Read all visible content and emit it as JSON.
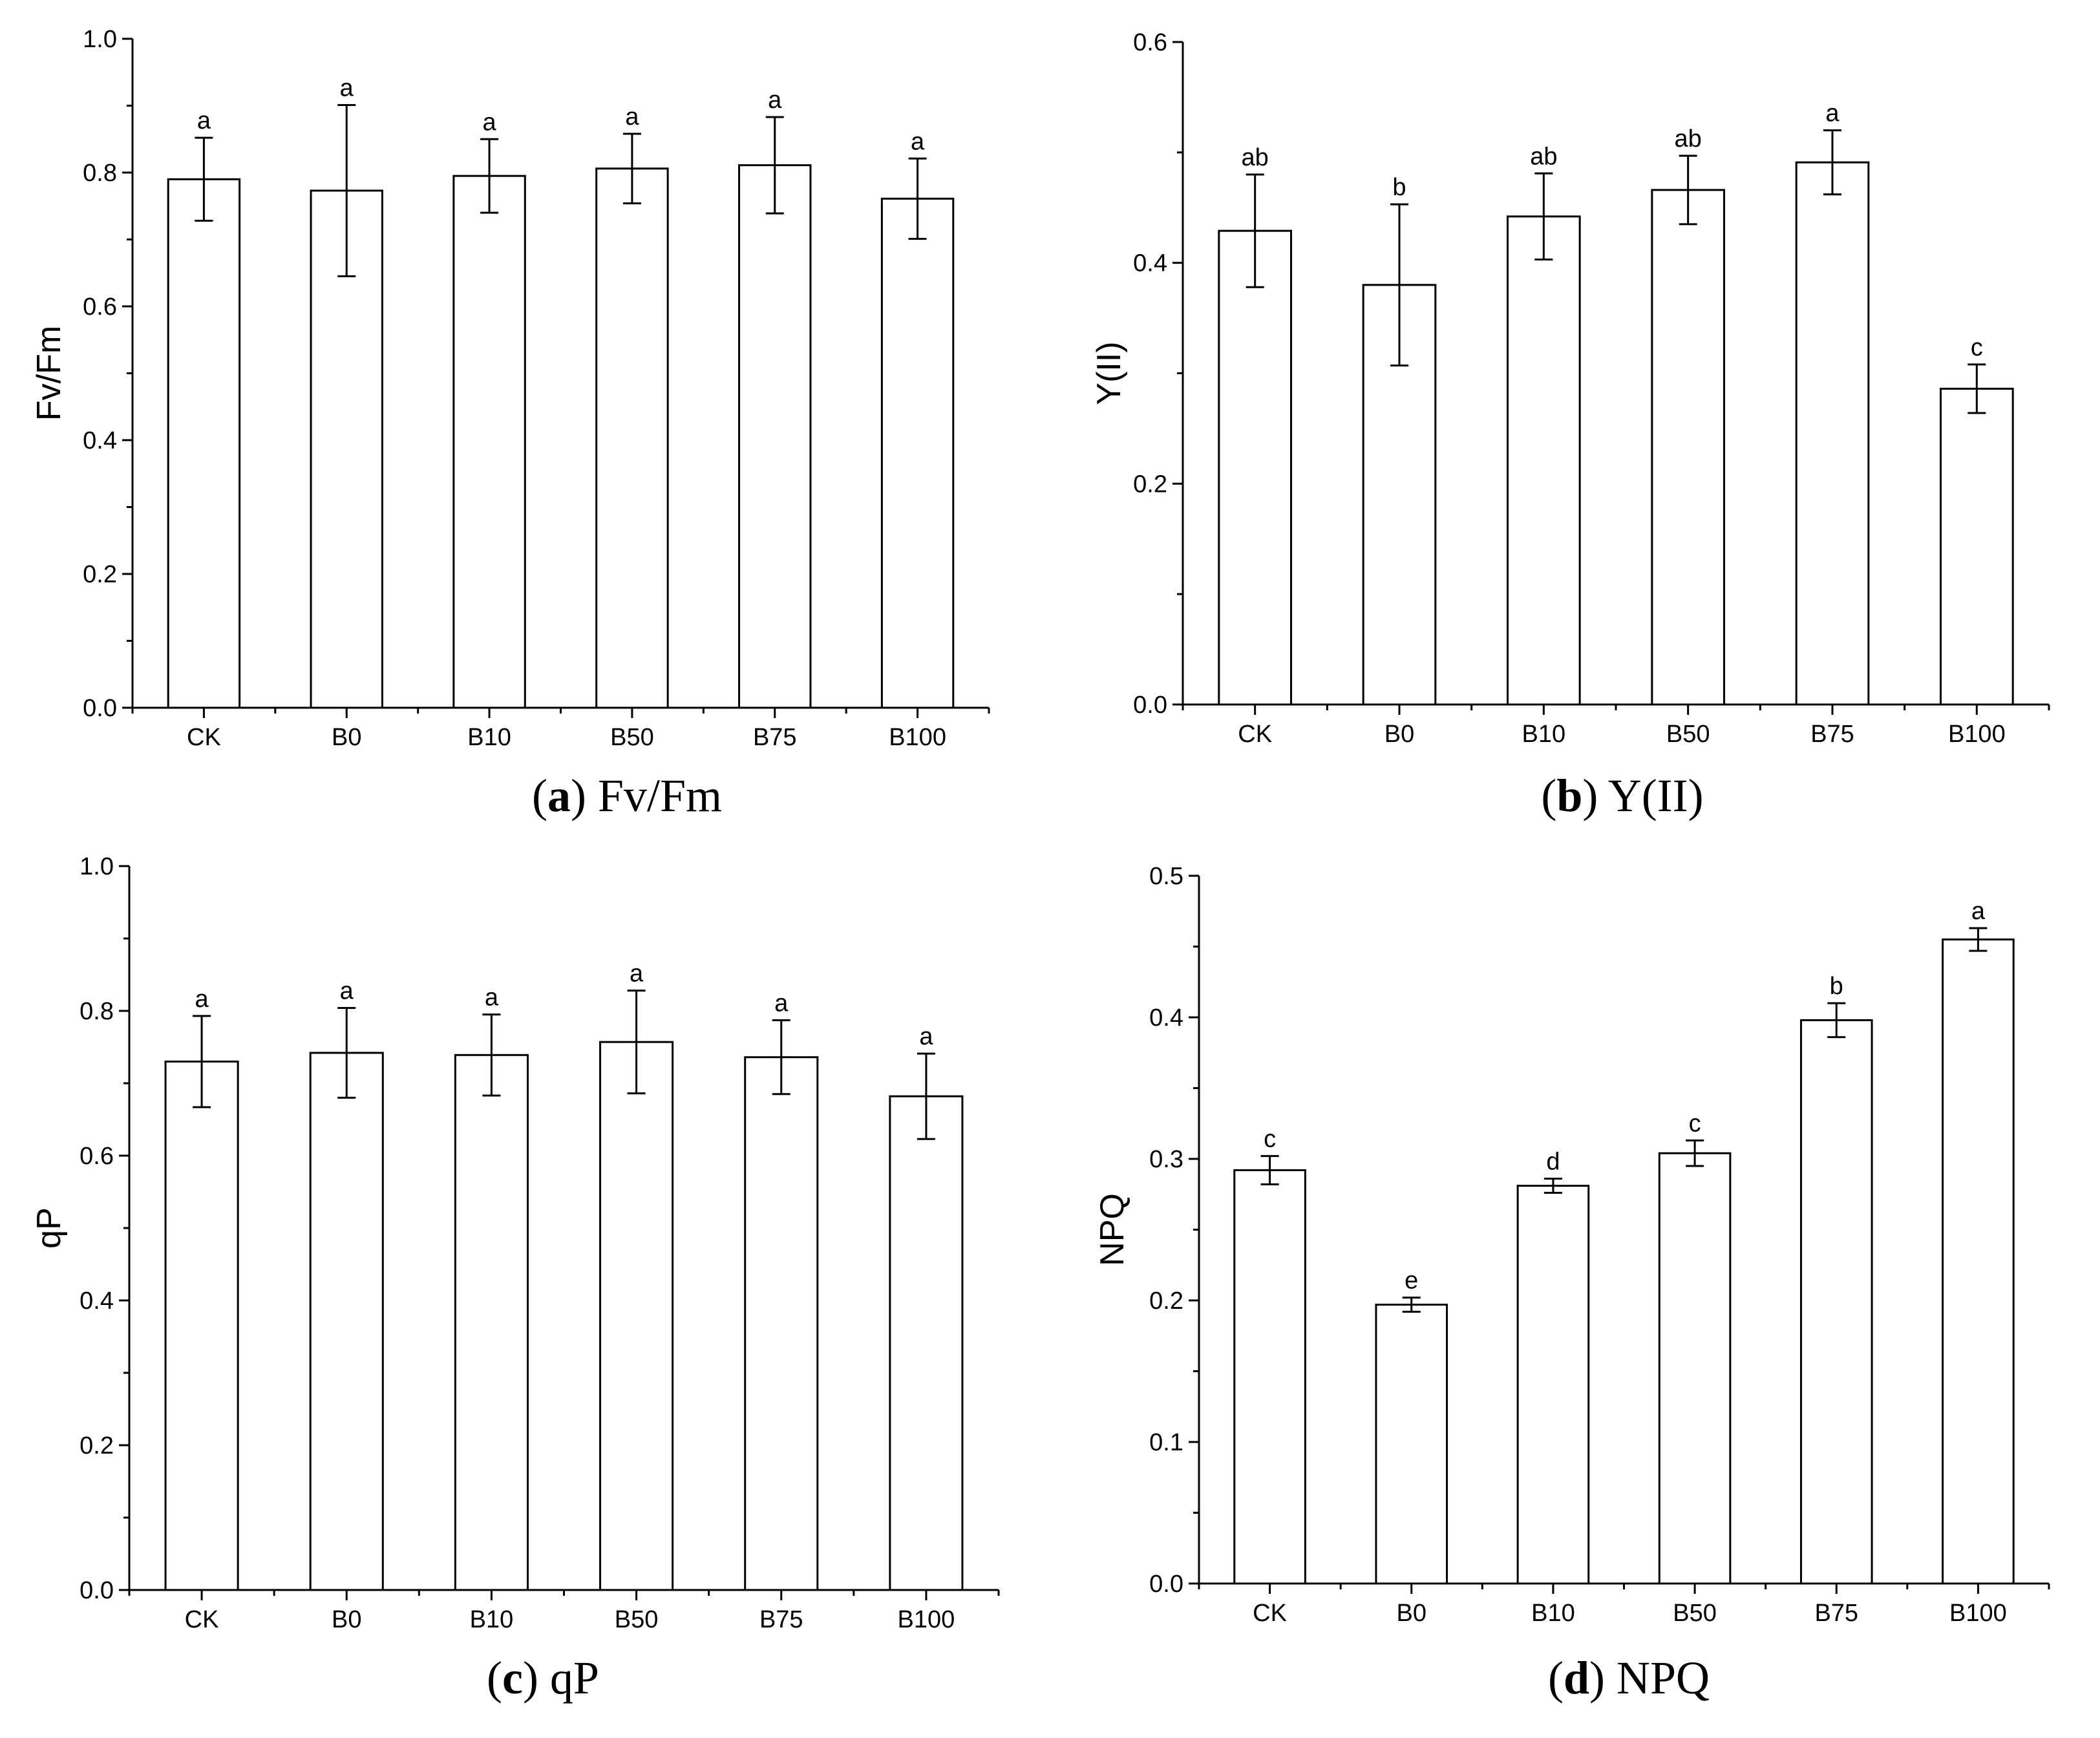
{
  "chart_data": [
    {
      "type": "bar",
      "panel_letter": "a",
      "caption": "Fv/Fm",
      "ylabel": "Fv/Fm",
      "categories": [
        "CK",
        "B0",
        "B10",
        "B50",
        "B75",
        "B100"
      ],
      "values": [
        0.79,
        0.773,
        0.795,
        0.806,
        0.811,
        0.761
      ],
      "errors": [
        0.062,
        0.128,
        0.055,
        0.052,
        0.072,
        0.06
      ],
      "significance": [
        "a",
        "a",
        "a",
        "a",
        "a",
        "a"
      ],
      "ylim": [
        0,
        1.0
      ],
      "yticks": [
        "0.0",
        "0.2",
        "0.4",
        "0.6",
        "0.8",
        "1.0"
      ]
    },
    {
      "type": "bar",
      "panel_letter": "b",
      "caption": "Y(II)",
      "ylabel": "Y(II)",
      "categories": [
        "CK",
        "B0",
        "B10",
        "B50",
        "B75",
        "B100"
      ],
      "values": [
        0.429,
        0.38,
        0.442,
        0.466,
        0.491,
        0.286
      ],
      "errors": [
        0.051,
        0.073,
        0.039,
        0.031,
        0.029,
        0.022
      ],
      "significance": [
        "ab",
        "b",
        "ab",
        "ab",
        "a",
        "c"
      ],
      "ylim": [
        0,
        0.6
      ],
      "yticks": [
        "0.0",
        "0.2",
        "0.4",
        "0.6"
      ]
    },
    {
      "type": "bar",
      "panel_letter": "c",
      "caption": "qP",
      "ylabel": "qP",
      "categories": [
        "CK",
        "B0",
        "B10",
        "B50",
        "B75",
        "B100"
      ],
      "values": [
        0.73,
        0.742,
        0.739,
        0.757,
        0.736,
        0.682
      ],
      "errors": [
        0.063,
        0.062,
        0.056,
        0.071,
        0.051,
        0.059
      ],
      "significance": [
        "a",
        "a",
        "a",
        "a",
        "a",
        "a"
      ],
      "ylim": [
        0,
        1.0
      ],
      "yticks": [
        "0.0",
        "0.2",
        "0.4",
        "0.6",
        "0.8",
        "1.0"
      ]
    },
    {
      "type": "bar",
      "panel_letter": "d",
      "caption": "NPQ",
      "ylabel": "NPQ",
      "categories": [
        "CK",
        "B0",
        "B10",
        "B50",
        "B75",
        "B100"
      ],
      "values": [
        0.292,
        0.197,
        0.281,
        0.304,
        0.398,
        0.455
      ],
      "errors": [
        0.01,
        0.005,
        0.005,
        0.009,
        0.012,
        0.008
      ],
      "significance": [
        "c",
        "e",
        "d",
        "c",
        "b",
        "a"
      ],
      "ylim": [
        0,
        0.5
      ],
      "yticks": [
        "0.0",
        "0.1",
        "0.2",
        "0.3",
        "0.4",
        "0.5"
      ]
    }
  ]
}
